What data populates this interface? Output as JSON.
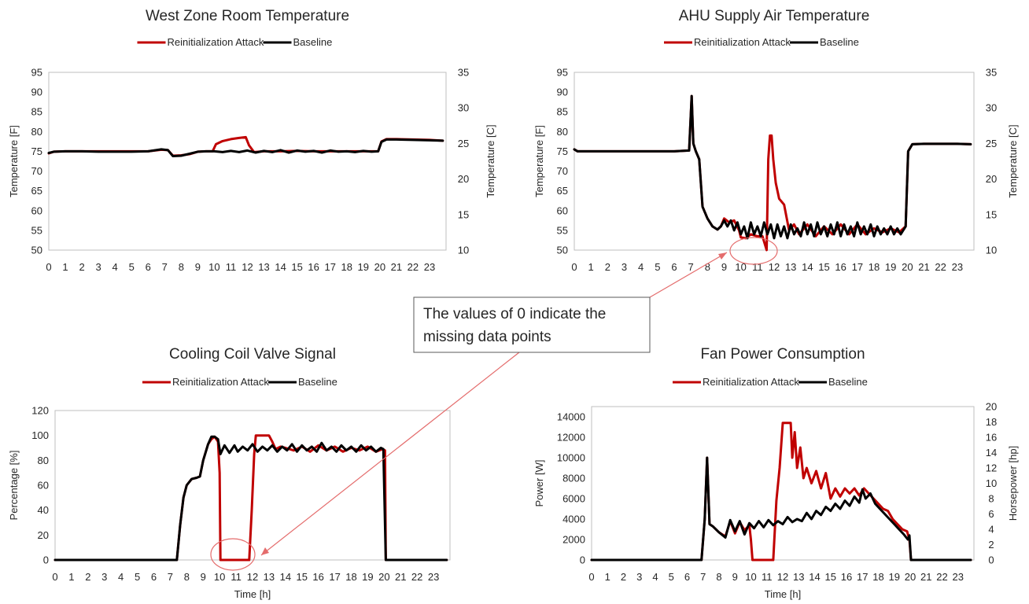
{
  "colors": {
    "attack": "#c00000",
    "baseline": "#000000",
    "axis": "#bfbfbf",
    "text": "#262626",
    "annotation": "#e46c6c"
  },
  "annotation": {
    "line1": "The values of 0 indicate the",
    "line2": "missing data points"
  },
  "chart_data": [
    {
      "type": "line",
      "title": "West Zone Room Temperature",
      "xlabel": "",
      "ylabel": "Temperature [F]",
      "y2label": "Temperature [C]",
      "xlim": [
        0,
        24
      ],
      "ylim": [
        50,
        95
      ],
      "y2lim": [
        10,
        35
      ],
      "yticks": [
        50,
        55,
        60,
        65,
        70,
        75,
        80,
        85,
        90,
        95
      ],
      "y2ticks": [
        10,
        15,
        20,
        25,
        30,
        35
      ],
      "xticks": [
        0,
        1,
        2,
        3,
        4,
        5,
        6,
        7,
        8,
        9,
        10,
        11,
        12,
        13,
        14,
        15,
        16,
        17,
        18,
        19,
        20,
        21,
        22,
        23
      ],
      "legend": "top",
      "series": [
        {
          "name": "Reinitialization Attack",
          "x": [
            0,
            0.3,
            1,
            2,
            3,
            4,
            5,
            6,
            6.8,
            7.2,
            7.5,
            8,
            8.5,
            9,
            9.5,
            9.9,
            10.1,
            10.5,
            11,
            11.5,
            11.9,
            12.1,
            12.4,
            13,
            14,
            15,
            16,
            17,
            18,
            19,
            19.9,
            20.1,
            20.4,
            21,
            22,
            23,
            23.8
          ],
          "y": [
            74.5,
            74.9,
            75,
            75,
            75,
            75,
            75,
            75,
            75.4,
            75.3,
            73.9,
            74,
            74.3,
            74.9,
            75,
            75,
            76.8,
            77.6,
            78.1,
            78.4,
            78.6,
            76.5,
            74.8,
            75,
            75,
            75.1,
            75,
            75,
            75,
            75,
            75,
            77.5,
            78.1,
            78.1,
            78,
            77.9,
            77.7
          ]
        },
        {
          "name": "Baseline",
          "x": [
            0,
            0.3,
            1,
            2,
            3,
            4,
            5,
            6,
            6.8,
            7.2,
            7.5,
            8,
            8.5,
            9,
            9.5,
            10,
            10.5,
            11,
            11.5,
            12,
            12.5,
            13,
            13.5,
            14,
            14.5,
            15,
            15.5,
            16,
            16.5,
            17,
            17.5,
            18,
            18.5,
            19,
            19.5,
            19.9,
            20.1,
            20.4,
            21,
            22,
            23,
            23.8
          ],
          "y": [
            74.6,
            74.9,
            75,
            75,
            74.9,
            74.9,
            74.9,
            75,
            75.5,
            75.3,
            73.8,
            73.9,
            74.4,
            74.9,
            75,
            75,
            74.8,
            75.1,
            74.8,
            75.2,
            74.7,
            75.1,
            74.8,
            75.3,
            74.7,
            75.2,
            74.9,
            75.1,
            74.7,
            75.2,
            74.9,
            75,
            74.8,
            75.1,
            74.9,
            75,
            77.4,
            78,
            78,
            77.9,
            77.8,
            77.7
          ]
        }
      ]
    },
    {
      "type": "line",
      "title": "AHU Supply Air Temperature",
      "xlabel": "",
      "ylabel": "Temperature [F]",
      "y2label": "Temperature [C]",
      "xlim": [
        0,
        24
      ],
      "ylim": [
        50,
        95
      ],
      "y2lim": [
        10,
        35
      ],
      "yticks": [
        50,
        55,
        60,
        65,
        70,
        75,
        80,
        85,
        90,
        95
      ],
      "y2ticks": [
        10,
        15,
        20,
        25,
        30,
        35
      ],
      "xticks": [
        0,
        1,
        2,
        3,
        4,
        5,
        6,
        7,
        8,
        9,
        10,
        11,
        12,
        13,
        14,
        15,
        16,
        17,
        18,
        19,
        20,
        21,
        22,
        23
      ],
      "legend": "top",
      "series": [
        {
          "name": "Reinitialization Attack",
          "x": [
            0,
            0.2,
            1,
            2,
            3,
            4,
            5,
            6,
            6.9,
            7.05,
            7.15,
            7.3,
            7.5,
            7.7,
            8,
            8.3,
            8.6,
            8.8,
            9,
            9.3,
            9.6,
            9.9,
            10,
            10.3,
            10.6,
            11,
            11.3,
            11.55,
            11.65,
            11.75,
            11.85,
            11.95,
            12.1,
            12.3,
            12.6,
            12.9,
            13.2,
            13.5,
            14,
            14.5,
            15,
            15.5,
            16,
            16.5,
            17,
            17.5,
            18,
            18.5,
            19,
            19.5,
            19.9,
            20.05,
            20.3,
            21,
            22,
            23,
            23.8
          ],
          "y": [
            75.5,
            75,
            75,
            75,
            75,
            75,
            75,
            75,
            75.2,
            89,
            77,
            75,
            73,
            61,
            58,
            56,
            55.2,
            56,
            58,
            57,
            57.5,
            55,
            53.2,
            53,
            54,
            53.5,
            53.5,
            50,
            73,
            79,
            79,
            73,
            67,
            63,
            61.5,
            55,
            56.5,
            54,
            56.5,
            53.5,
            56,
            54,
            56.5,
            54,
            56.5,
            54,
            55.5,
            54.5,
            55.5,
            54.5,
            56,
            75,
            76.8,
            76.9,
            76.9,
            76.9,
            76.8
          ]
        },
        {
          "name": "Baseline",
          "x": [
            0,
            0.2,
            1,
            2,
            3,
            4,
            5,
            6,
            6.9,
            7.05,
            7.15,
            7.3,
            7.5,
            7.7,
            8,
            8.3,
            8.6,
            8.8,
            9,
            9.2,
            9.4,
            9.6,
            9.8,
            10,
            10.2,
            10.4,
            10.6,
            10.8,
            11,
            11.2,
            11.4,
            11.6,
            11.8,
            12,
            12.2,
            12.4,
            12.6,
            12.8,
            13,
            13.2,
            13.4,
            13.6,
            13.8,
            14,
            14.2,
            14.4,
            14.6,
            14.8,
            15,
            15.2,
            15.4,
            15.6,
            15.8,
            16,
            16.2,
            16.4,
            16.6,
            16.8,
            17,
            17.2,
            17.4,
            17.6,
            17.8,
            18,
            18.2,
            18.4,
            18.6,
            18.8,
            19,
            19.2,
            19.4,
            19.6,
            19.9,
            20.05,
            20.3,
            21,
            22,
            23,
            23.8
          ],
          "y": [
            75.5,
            75,
            75,
            75,
            75,
            75,
            75,
            75,
            75.2,
            89,
            77,
            75,
            73,
            61,
            58,
            56,
            55.2,
            56,
            57.5,
            56,
            57.5,
            55,
            57,
            54,
            56,
            53,
            57,
            54,
            56,
            53.5,
            57,
            54,
            56.5,
            53,
            56.5,
            53.5,
            56,
            53,
            56.5,
            54,
            55.5,
            53.5,
            57,
            54,
            56.5,
            53.5,
            57,
            54,
            56,
            53.5,
            56.5,
            54,
            57,
            53.5,
            56.5,
            54,
            56,
            53.5,
            57,
            54,
            56,
            54,
            56.5,
            53.5,
            56,
            54,
            55.5,
            54,
            56,
            54,
            55.5,
            54,
            56,
            75,
            76.8,
            76.9,
            76.9,
            76.9,
            76.8
          ]
        }
      ]
    },
    {
      "type": "line",
      "title": "Cooling Coil Valve Signal",
      "xlabel": "Time [h]",
      "ylabel": "Percentage [%]",
      "xlim": [
        0,
        24
      ],
      "ylim": [
        0,
        120
      ],
      "yticks": [
        0,
        20,
        40,
        60,
        80,
        100,
        120
      ],
      "xticks": [
        0,
        1,
        2,
        3,
        4,
        5,
        6,
        7,
        8,
        9,
        10,
        11,
        12,
        13,
        14,
        15,
        16,
        17,
        18,
        19,
        20,
        21,
        22,
        23
      ],
      "legend": "top",
      "series": [
        {
          "name": "Reinitialization Attack",
          "x": [
            0,
            7.4,
            7.6,
            7.8,
            8,
            8.3,
            8.6,
            8.8,
            9,
            9.3,
            9.5,
            9.7,
            9.9,
            10,
            10.05,
            11.8,
            11.95,
            12.1,
            12.2,
            12.4,
            12.6,
            13,
            13.2,
            13.4,
            13.7,
            14,
            14.5,
            15,
            15.5,
            16,
            16.5,
            17,
            17.5,
            18,
            18.5,
            19,
            19.5,
            19.9,
            20.05,
            20.1,
            23.8
          ],
          "y": [
            0,
            0,
            28,
            50,
            60,
            65,
            66,
            67,
            80,
            93,
            97,
            99,
            95,
            70,
            0,
            0,
            40,
            85,
            100,
            100,
            100,
            100,
            95,
            89,
            91,
            90,
            88,
            91,
            87,
            92,
            88,
            91,
            87,
            90,
            88,
            91,
            87,
            89,
            88,
            0,
            0
          ]
        },
        {
          "name": "Baseline",
          "x": [
            0,
            7.4,
            7.6,
            7.8,
            8,
            8.3,
            8.6,
            8.8,
            9,
            9.3,
            9.5,
            9.7,
            9.9,
            10.05,
            10.3,
            10.6,
            10.9,
            11.1,
            11.4,
            11.7,
            12,
            12.3,
            12.6,
            12.9,
            13.2,
            13.5,
            13.8,
            14.1,
            14.4,
            14.7,
            15,
            15.3,
            15.6,
            15.9,
            16.2,
            16.5,
            16.8,
            17.1,
            17.4,
            17.7,
            18,
            18.3,
            18.6,
            18.9,
            19.2,
            19.5,
            19.8,
            19.95,
            20.1,
            23.8
          ],
          "y": [
            0,
            0,
            28,
            50,
            60,
            65,
            66,
            67,
            80,
            93,
            99,
            99,
            97,
            85,
            92,
            86,
            92,
            87,
            91,
            88,
            93,
            87,
            91,
            88,
            92,
            87,
            91,
            88,
            93,
            87,
            92,
            88,
            91,
            87,
            94,
            88,
            91,
            87,
            92,
            88,
            91,
            87,
            92,
            88,
            91,
            87,
            90,
            89,
            0,
            0
          ]
        }
      ]
    },
    {
      "type": "line",
      "title": "Fan Power Consumption",
      "xlabel": "Time [h]",
      "ylabel": "Power [W]",
      "y2label": "Horsepower [hp]",
      "xlim": [
        0,
        24
      ],
      "ylim": [
        0,
        15000
      ],
      "y2lim": [
        0,
        20
      ],
      "yticks": [
        0,
        2000,
        4000,
        6000,
        8000,
        10000,
        12000,
        14000
      ],
      "y2ticks": [
        0,
        2,
        4,
        6,
        8,
        10,
        12,
        14,
        16,
        18,
        20
      ],
      "xticks": [
        0,
        1,
        2,
        3,
        4,
        5,
        6,
        7,
        8,
        9,
        10,
        11,
        12,
        13,
        14,
        15,
        16,
        17,
        18,
        19,
        20,
        21,
        22,
        23
      ],
      "legend": "top",
      "series": [
        {
          "name": "Reinitialization Attack",
          "x": [
            0,
            6.9,
            7.1,
            7.25,
            7.4,
            7.6,
            8,
            8.4,
            8.7,
            9,
            9.3,
            9.6,
            9.9,
            10,
            10.1,
            11.4,
            11.6,
            11.8,
            12,
            12.3,
            12.5,
            12.6,
            12.75,
            12.9,
            13.1,
            13.3,
            13.5,
            13.8,
            14.1,
            14.4,
            14.7,
            15,
            15.3,
            15.6,
            15.9,
            16.2,
            16.5,
            16.8,
            17.1,
            17.4,
            17.7,
            18,
            18.3,
            18.6,
            18.9,
            19.2,
            19.5,
            19.8,
            19.95,
            20.05,
            23.8
          ],
          "y": [
            0,
            0,
            4000,
            10000,
            3500,
            3300,
            2700,
            2300,
            3800,
            2600,
            3700,
            2900,
            3400,
            2000,
            0,
            0,
            5800,
            9000,
            13400,
            13400,
            13400,
            10000,
            12500,
            9000,
            11000,
            8000,
            9000,
            7500,
            8700,
            7000,
            8500,
            6000,
            7000,
            6200,
            7000,
            6500,
            7000,
            6300,
            7000,
            6500,
            6000,
            5500,
            5000,
            4800,
            4000,
            3500,
            3000,
            2800,
            2000,
            0,
            0
          ]
        },
        {
          "name": "Baseline",
          "x": [
            0,
            6.9,
            7.1,
            7.25,
            7.4,
            7.6,
            8,
            8.4,
            8.7,
            9,
            9.3,
            9.6,
            9.9,
            10.2,
            10.5,
            10.8,
            11.1,
            11.4,
            11.7,
            12,
            12.3,
            12.6,
            12.9,
            13.2,
            13.5,
            13.8,
            14.1,
            14.4,
            14.7,
            15,
            15.3,
            15.6,
            15.9,
            16.2,
            16.5,
            16.8,
            17,
            17.2,
            17.5,
            17.8,
            18.1,
            18.4,
            18.7,
            19,
            19.3,
            19.6,
            19.85,
            19.95,
            20.05,
            23.8
          ],
          "y": [
            0,
            0,
            4000,
            10000,
            3500,
            3300,
            2700,
            2200,
            3900,
            2800,
            3800,
            2500,
            3600,
            3100,
            3800,
            3200,
            3900,
            3400,
            3800,
            3500,
            4200,
            3700,
            4000,
            3800,
            4600,
            4000,
            4800,
            4400,
            5200,
            4800,
            5500,
            5000,
            5800,
            5300,
            6200,
            5600,
            6900,
            6000,
            6500,
            5500,
            5000,
            4500,
            4000,
            3500,
            3000,
            2500,
            2000,
            2400,
            0,
            0
          ]
        }
      ]
    }
  ]
}
